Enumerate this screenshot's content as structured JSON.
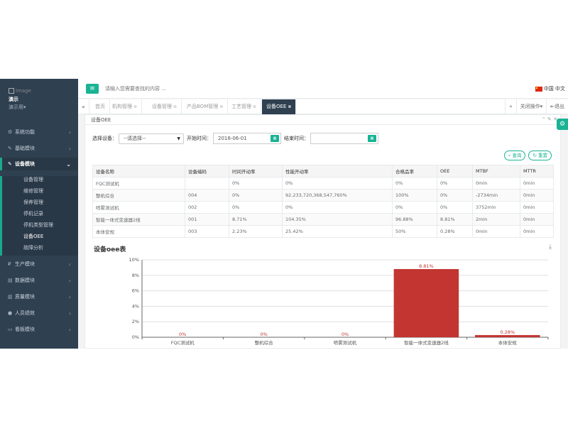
{
  "sidebar": {
    "image_alt": "image",
    "user_name": "演示",
    "user_role": "演示用",
    "items": [
      {
        "label": "系统功能",
        "icon": "gear-icon"
      },
      {
        "label": "基础模块",
        "icon": "wrench-icon"
      },
      {
        "label": "设备模块",
        "icon": "wrench-icon"
      },
      {
        "label": "生产模块",
        "icon": "currency-icon"
      },
      {
        "label": "数据模块",
        "icon": "database-icon"
      },
      {
        "label": "质量模块",
        "icon": "chart-icon"
      },
      {
        "label": "人员绩效",
        "icon": "user-icon"
      },
      {
        "label": "看板模块",
        "icon": "monitor-icon"
      }
    ],
    "subitems": [
      "设备管理",
      "维修管理",
      "保养管理",
      "停机记录",
      "停机类型管理",
      "设备OEE",
      "故障分析"
    ]
  },
  "header": {
    "search_placeholder": "请输入您需要查找的内容 ...",
    "language": "中国 中文"
  },
  "tabs": {
    "items": [
      {
        "label": "首页",
        "closable": false
      },
      {
        "label": "机构管理",
        "closable": true
      },
      {
        "label": "设备管理",
        "closable": true
      },
      {
        "label": "产品BOM管理",
        "closable": true
      },
      {
        "label": "工艺管理",
        "closable": true
      },
      {
        "label": "设备OEE",
        "closable": true,
        "active": true
      }
    ],
    "close_ops": "关闭操作",
    "logout": "退出"
  },
  "panel": {
    "title": "设备OEE",
    "filters": {
      "device_label": "选择设备：",
      "device_value": "--请选择--",
      "start_label": "开始时间：",
      "start_value": "2018-06-01",
      "end_label": "结束时间：",
      "end_value": ""
    },
    "query_button": "查询",
    "reset_button": "重置",
    "table": {
      "headers": [
        "设备名称",
        "设备编码",
        "时间开动率",
        "性能开动率",
        "合格品率",
        "OEE",
        "MTBF",
        "MTTR"
      ],
      "rows": [
        [
          "FQC测试机",
          "",
          "0%",
          "0%",
          "0%",
          "0%",
          "0min",
          "0min"
        ],
        [
          "整机综合",
          "004",
          "0%",
          "92,233,720,368,547,760%",
          "100%",
          "0%",
          "-2734min",
          "0min"
        ],
        [
          "喷雾测试机",
          "002",
          "0%",
          "0%",
          "0%",
          "0%",
          "3752min",
          "0min"
        ],
        [
          "智能一体式变速器2线",
          "001",
          "8.71%",
          "104.35%",
          "96.88%",
          "8.81%",
          "2min",
          "0min"
        ],
        [
          "本体安规",
          "003",
          "2.23%",
          "25.42%",
          "50%",
          "0.28%",
          "0min",
          "0min"
        ]
      ]
    },
    "chart_title": "设备oee表"
  },
  "chart_data": {
    "type": "bar",
    "categories": [
      "FQC测试机",
      "整机综合",
      "喷雾测试机",
      "智能一体式变速器2线",
      "本体安规"
    ],
    "values": [
      0,
      0,
      0,
      8.81,
      0.28
    ],
    "data_labels": [
      "0%",
      "0%",
      "0%",
      "8.81%",
      "0.28%"
    ],
    "yticks": [
      "0%",
      "2%",
      "4%",
      "6%",
      "8%",
      "10%"
    ],
    "ylim": [
      0,
      10
    ],
    "bar_color": "#c23531",
    "grid": true
  }
}
